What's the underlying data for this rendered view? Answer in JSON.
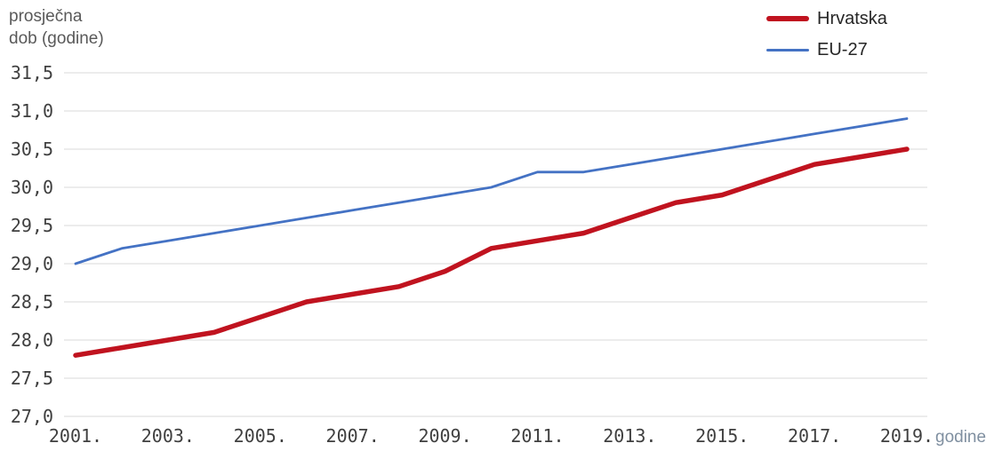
{
  "chart_data": {
    "type": "line",
    "y_axis_title_lines": [
      "prosječna",
      "dob (godine)"
    ],
    "x_axis_suffix_label": "godine",
    "ylim": [
      27.0,
      31.5
    ],
    "grid": true,
    "legend_position": "top-right",
    "y_ticks": [
      27.0,
      27.5,
      28.0,
      28.5,
      29.0,
      29.5,
      30.0,
      30.5,
      31.0,
      31.5
    ],
    "y_tick_labels": [
      "27,0",
      "27,5",
      "28,0",
      "28,5",
      "29,0",
      "29,5",
      "30,0",
      "30,5",
      "31,0",
      "31,5"
    ],
    "categories": [
      2001,
      2002,
      2003,
      2004,
      2005,
      2006,
      2007,
      2008,
      2009,
      2010,
      2011,
      2012,
      2013,
      2014,
      2015,
      2016,
      2017,
      2018,
      2019
    ],
    "x_tick_labels": [
      "2001.",
      "2003.",
      "2005.",
      "2007.",
      "2009.",
      "2011.",
      "2013.",
      "2015.",
      "2017.",
      "2019."
    ],
    "x_tick_years": [
      2001,
      2003,
      2005,
      2007,
      2009,
      2011,
      2013,
      2015,
      2017,
      2019
    ],
    "series": [
      {
        "name": "Hrvatska",
        "color": "#c0131f",
        "stroke_width": 5.5,
        "values": [
          27.8,
          27.9,
          28.0,
          28.1,
          28.3,
          28.5,
          28.6,
          28.7,
          28.9,
          29.2,
          29.3,
          29.4,
          29.6,
          29.8,
          29.9,
          30.1,
          30.3,
          30.4,
          30.5
        ]
      },
      {
        "name": "EU-27",
        "color": "#4472c4",
        "stroke_width": 2.8,
        "values": [
          29.0,
          29.2,
          29.3,
          29.4,
          29.5,
          29.6,
          29.7,
          29.8,
          29.9,
          30.0,
          30.2,
          30.2,
          30.3,
          30.4,
          30.5,
          30.6,
          30.7,
          30.8,
          30.9
        ]
      }
    ],
    "colors": {
      "gridline": "#d9d9d9",
      "tick_text": "#3f3f3f",
      "axis_title_text": "#595959",
      "suffix_text": "#7f8fa0",
      "legend_text": "#262626"
    }
  }
}
